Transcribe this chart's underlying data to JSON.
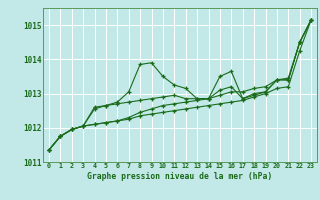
{
  "xlabel": "Graphe pression niveau de la mer (hPa)",
  "ylim": [
    1011.0,
    1015.5
  ],
  "xlim": [
    -0.5,
    23.5
  ],
  "yticks": [
    1011,
    1012,
    1013,
    1014,
    1015
  ],
  "xticks": [
    0,
    1,
    2,
    3,
    4,
    5,
    6,
    7,
    8,
    9,
    10,
    11,
    12,
    13,
    14,
    15,
    16,
    17,
    18,
    19,
    20,
    21,
    22,
    23
  ],
  "bg_color": "#c2e8e8",
  "grid_color": "#ffffff",
  "line_color": "#1a6b1a",
  "series": [
    [
      1011.35,
      1011.75,
      1011.95,
      1012.05,
      1012.55,
      1012.65,
      1012.75,
      1013.05,
      1013.85,
      1013.9,
      1013.5,
      1013.25,
      1013.15,
      1012.85,
      1012.85,
      1013.5,
      1013.65,
      1012.85,
      1013.0,
      1013.05,
      1013.4,
      1013.4,
      1014.5,
      1015.15
    ],
    [
      1011.35,
      1011.75,
      1011.95,
      1012.05,
      1012.6,
      1012.65,
      1012.7,
      1012.75,
      1012.8,
      1012.85,
      1012.9,
      1012.95,
      1012.85,
      1012.85,
      1012.85,
      1013.1,
      1013.2,
      1012.85,
      1012.95,
      1013.05,
      1013.4,
      1013.4,
      1014.5,
      1015.15
    ],
    [
      1011.35,
      1011.75,
      1011.95,
      1012.05,
      1012.1,
      1012.15,
      1012.2,
      1012.25,
      1012.35,
      1012.4,
      1012.45,
      1012.5,
      1012.55,
      1012.6,
      1012.65,
      1012.7,
      1012.75,
      1012.8,
      1012.9,
      1013.0,
      1013.15,
      1013.2,
      1014.25,
      1015.15
    ],
    [
      1011.35,
      1011.75,
      1011.95,
      1012.05,
      1012.1,
      1012.15,
      1012.2,
      1012.3,
      1012.45,
      1012.55,
      1012.65,
      1012.7,
      1012.75,
      1012.8,
      1012.85,
      1012.95,
      1013.05,
      1013.05,
      1013.15,
      1013.2,
      1013.4,
      1013.45,
      1014.5,
      1015.15
    ]
  ]
}
